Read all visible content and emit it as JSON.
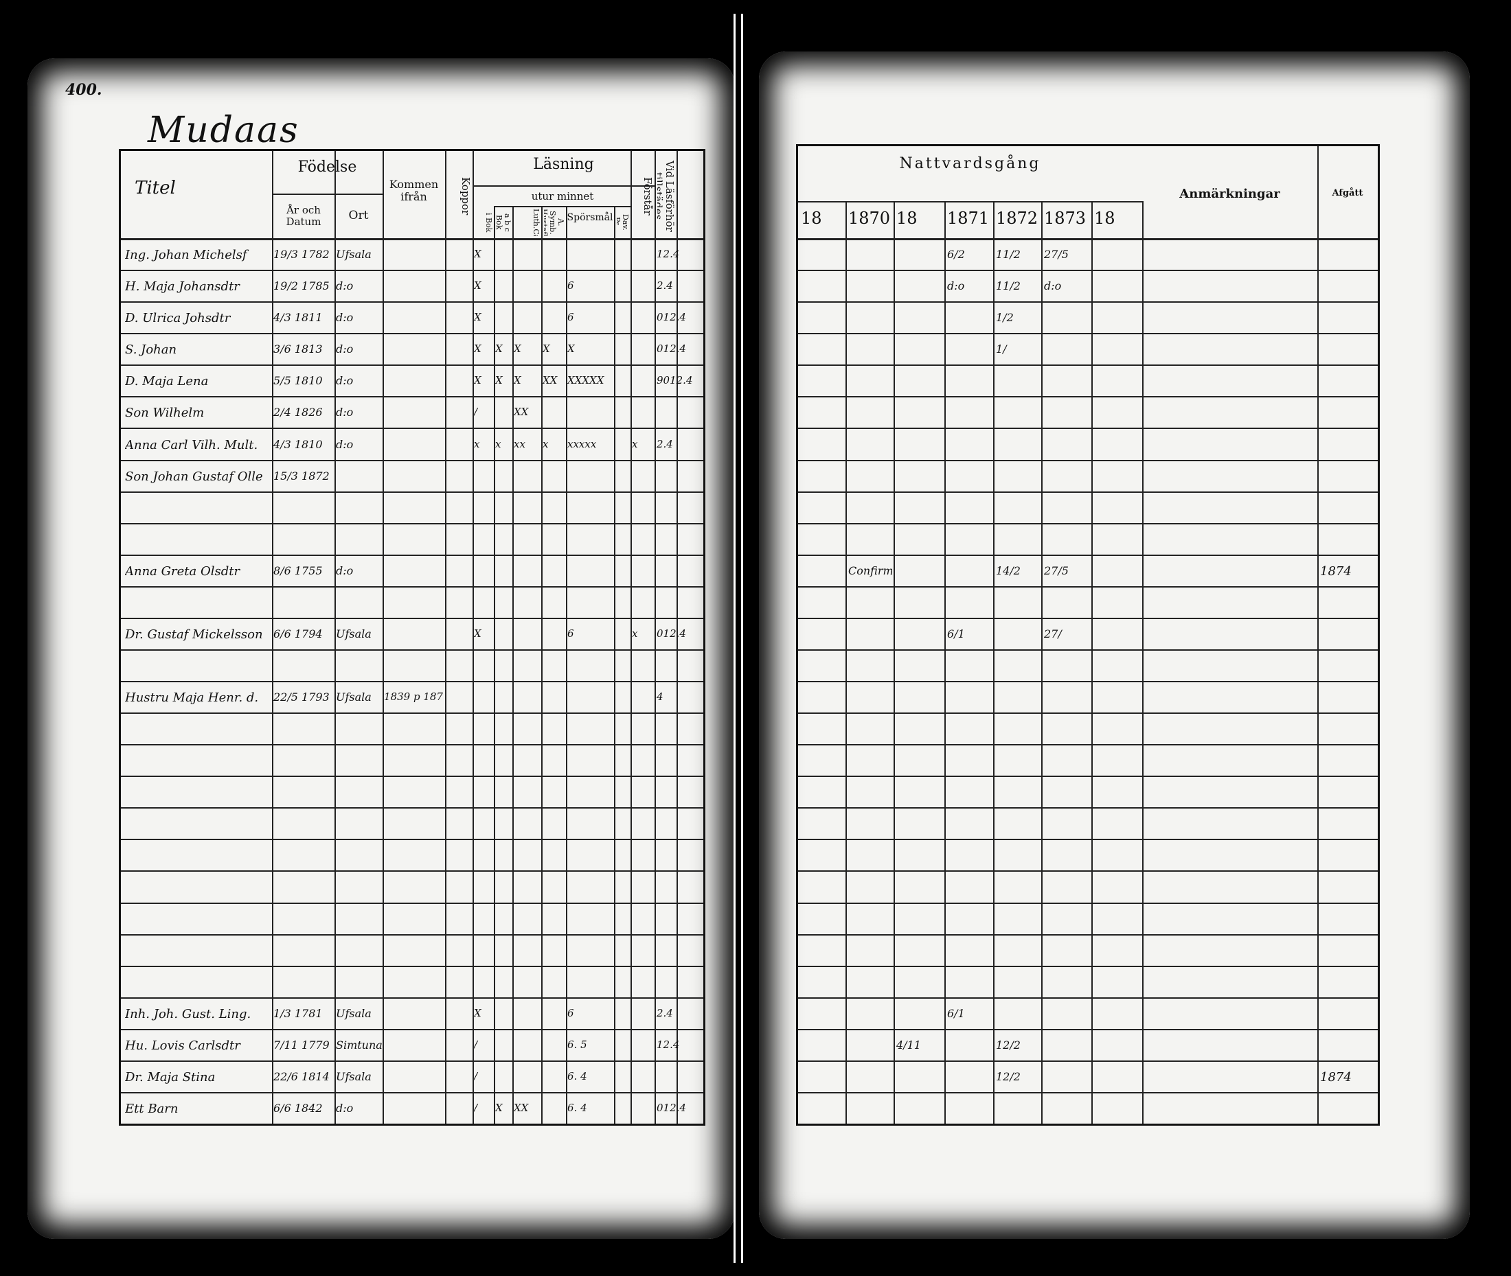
{
  "folio": "400.",
  "place_title": "Mudaas",
  "left_headers": {
    "title": "Titel",
    "fodelse": "Födelse",
    "ar_datum": "År och Datum",
    "ort": "Ort",
    "kommen": "Kommen ifrån",
    "koppor": "Koppor",
    "lasning": "Läsning",
    "utur_minnet": "utur minnet",
    "i_bok": "i Bok",
    "abc_bok": "a b c Bok",
    "luth_cat": "Luth.Cat.",
    "symb": "A. Symb. Hustafla",
    "sporsmal": "Spörsmål",
    "dav_ps": "Dav. Ps.",
    "forstar": "Förstår",
    "lasforhor": "Vid Läsförhör tillstädes"
  },
  "right_headers": {
    "nattvard": "Nattvardsgång",
    "years": [
      "18",
      "1870",
      "18",
      "1871",
      "1872",
      "1873",
      "18"
    ],
    "anmarkningar": "Anmärkningar",
    "afgatt": "Afgått"
  },
  "rows": [
    {
      "slot": 0,
      "name": "Ing. Johan Michelsf",
      "date": "19/3 1782",
      "place": "Ufsala",
      "marks": [
        "X",
        "",
        "",
        "",
        "",
        "",
        "",
        ""
      ],
      "lf": "12.4",
      "n": [
        "",
        "",
        "",
        "6/2",
        "11/2",
        "27/5",
        ""
      ],
      "rem": "",
      "afg": ""
    },
    {
      "slot": 1,
      "name": "H. Maja Johansdtr",
      "date": "19/2 1785",
      "place": "d:o",
      "marks": [
        "X",
        "",
        "",
        "",
        "6",
        "",
        "",
        ""
      ],
      "lf": "2.4",
      "n": [
        "",
        "",
        "",
        "d:o",
        "11/2",
        "d:o",
        ""
      ],
      "rem": "",
      "afg": ""
    },
    {
      "slot": 2,
      "name": "D. Ulrica Johsdtr",
      "date": "4/3 1811",
      "place": "d:o",
      "marks": [
        "X",
        "",
        "",
        "",
        "6",
        "",
        "",
        ""
      ],
      "lf": "012.4",
      "n": [
        "",
        "",
        "",
        "",
        "1/2",
        "",
        ""
      ],
      "rem": "",
      "afg": ""
    },
    {
      "slot": 3,
      "name": "S. Johan",
      "date": "3/6 1813",
      "place": "d:o",
      "marks": [
        "X",
        "X",
        "X",
        "X",
        "X",
        "",
        "",
        ""
      ],
      "lf": "012.4",
      "n": [
        "",
        "",
        "",
        "",
        "1/",
        "",
        ""
      ],
      "rem": "",
      "afg": ""
    },
    {
      "slot": 4,
      "name": "D. Maja Lena",
      "date": "5/5 1810",
      "place": "d:o",
      "marks": [
        "X",
        "X",
        "X",
        "XX",
        "XXXXX",
        "",
        "",
        ""
      ],
      "lf": "9012.4",
      "n": [
        "",
        "",
        "",
        "",
        "",
        "",
        ""
      ],
      "rem": "",
      "afg": ""
    },
    {
      "slot": 5,
      "name": "Son Wilhelm",
      "date": "2/4 1826",
      "place": "d:o",
      "marks": [
        "/",
        "",
        "XX",
        "",
        "",
        "",
        "",
        ""
      ],
      "lf": "",
      "n": [
        "",
        "",
        "",
        "",
        "",
        "",
        ""
      ],
      "rem": "",
      "afg": ""
    },
    {
      "slot": 6,
      "name": "Anna Carl Vilh. Mult.",
      "date": "4/3 1810",
      "place": "d:o",
      "marks": [
        "x",
        "x",
        "xx",
        "x",
        "xxxxx",
        "",
        "x",
        ""
      ],
      "lf": "2.4",
      "n": [
        "",
        "",
        "",
        "",
        "",
        "",
        ""
      ],
      "rem": "",
      "afg": ""
    },
    {
      "slot": 7,
      "name": "Son Johan Gustaf Olle",
      "date": "15/3 1872",
      "place": "",
      "marks": [
        "",
        "",
        "",
        "",
        "",
        "",
        "",
        ""
      ],
      "lf": "",
      "n": [
        "",
        "",
        "",
        "",
        "",
        "",
        ""
      ],
      "rem": "",
      "afg": ""
    },
    {
      "slot": 10,
      "name": "Anna Greta Olsdtr",
      "date": "8/6 1755",
      "place": "d:o",
      "marks": [
        "",
        "",
        "",
        "",
        "",
        "",
        "",
        ""
      ],
      "lf": "",
      "n": [
        "",
        "Confirm.",
        "",
        "",
        "14/2",
        "27/5",
        ""
      ],
      "rem": "",
      "afg": "1874"
    },
    {
      "slot": 12,
      "name": "Dr. Gustaf Mickelsson",
      "date": "6/6 1794",
      "place": "Ufsala",
      "marks": [
        "X",
        "",
        "",
        "",
        "6",
        "",
        "x",
        ""
      ],
      "lf": "012.4",
      "n": [
        "",
        "",
        "",
        "6/1",
        "",
        "27/",
        ""
      ],
      "rem": "",
      "afg": ""
    },
    {
      "slot": 14,
      "name": "Hustru Maja Henr. d.",
      "date": "22/5 1793",
      "place": "Ufsala",
      "kommen": "1839 p 187",
      "marks": [
        "",
        "",
        "",
        "",
        "",
        "",
        "",
        ""
      ],
      "lf": "4",
      "n": [
        "",
        "",
        "",
        "",
        "",
        "",
        ""
      ],
      "rem": "",
      "afg": ""
    },
    {
      "slot": 24,
      "name": "Inh. Joh. Gust. Ling.",
      "date": "1/3 1781",
      "place": "Ufsala",
      "marks": [
        "X",
        "",
        "",
        "",
        "6",
        "",
        "",
        ""
      ],
      "lf": "2.4",
      "n": [
        "",
        "",
        "",
        "6/1",
        "",
        "",
        ""
      ],
      "rem": "",
      "afg": ""
    },
    {
      "slot": 25,
      "name": "Hu. Lovis Carlsdtr",
      "date": "7/11 1779",
      "place": "Simtuna",
      "marks": [
        "/",
        "",
        "",
        "",
        "6. 5",
        "",
        "",
        ""
      ],
      "lf": "12.4",
      "n": [
        "",
        "",
        "4/11",
        "",
        "12/2",
        "",
        ""
      ],
      "rem": "",
      "afg": ""
    },
    {
      "slot": 26,
      "name": "Dr. Maja Stina",
      "date": "22/6 1814",
      "place": "Ufsala",
      "marks": [
        "/",
        "",
        "",
        "",
        "6. 4",
        "",
        "",
        ""
      ],
      "lf": "",
      "n": [
        "",
        "",
        "",
        "",
        "12/2",
        "",
        ""
      ],
      "rem": "",
      "afg": "1874"
    },
    {
      "slot": 27,
      "name": "Ett Barn",
      "date": "6/6 1842",
      "place": "d:o",
      "marks": [
        "/",
        "X",
        "XX",
        "",
        "6. 4",
        "",
        "",
        ""
      ],
      "lf": "012.4",
      "n": [
        "",
        "",
        "",
        "",
        "",
        "",
        ""
      ],
      "rem": "",
      "afg": ""
    }
  ]
}
